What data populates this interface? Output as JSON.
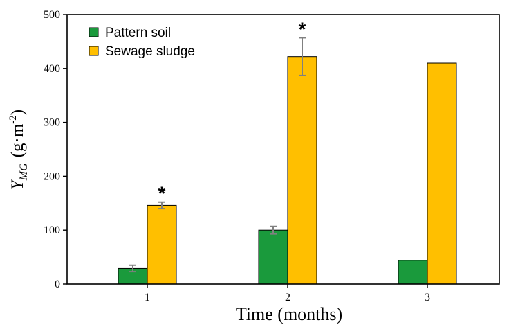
{
  "chart_data": {
    "type": "bar",
    "title": "",
    "xlabel": "Time (months)",
    "ylabel": {
      "symbol": "Y",
      "subscript": "MG",
      "units_prefix": "(g·m",
      "units_superscript": "-2",
      "units_suffix": ")"
    },
    "categories": [
      "1",
      "2",
      "3"
    ],
    "ylim": [
      0,
      500
    ],
    "yticks": [
      0,
      100,
      200,
      300,
      400,
      500
    ],
    "grid": false,
    "legend_position": "top-left",
    "series": [
      {
        "name": "Pattern soil",
        "color": "#1a9a3c",
        "values": [
          29,
          100,
          44
        ],
        "errors": [
          6,
          7,
          null
        ],
        "significance": [
          "",
          "",
          ""
        ]
      },
      {
        "name": "Sewage sludge",
        "color": "#ffbf00",
        "values": [
          146,
          422,
          410
        ],
        "errors": [
          6,
          35,
          null
        ],
        "significance": [
          "*",
          "*",
          ""
        ]
      }
    ]
  }
}
